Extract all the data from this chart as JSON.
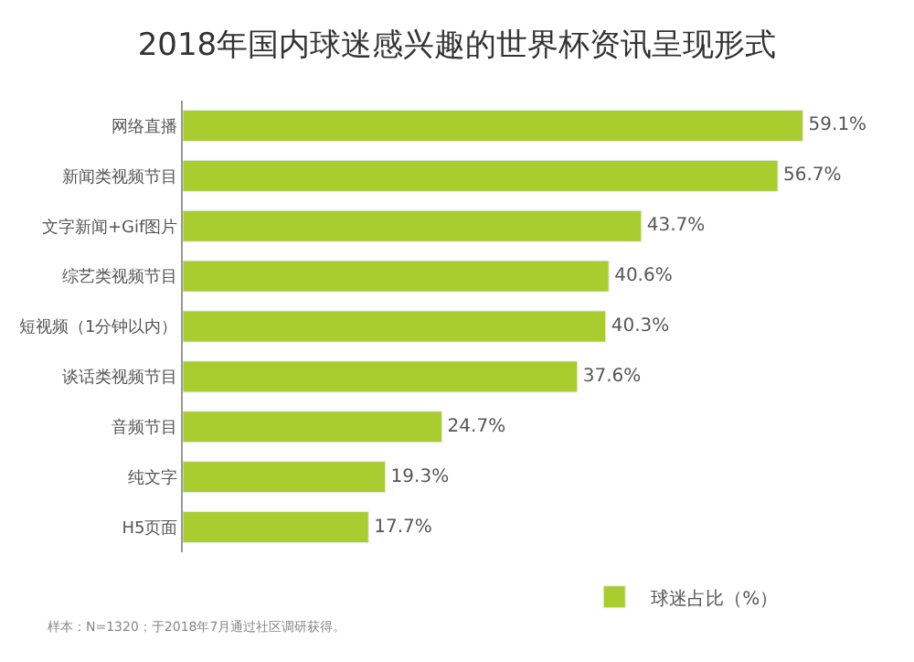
{
  "chart_data": {
    "type": "bar",
    "orientation": "horizontal",
    "title": "2018年国内球迷感兴趣的世界杯资讯呈现形式",
    "categories": [
      "网络直播",
      "新闻类视频节目",
      "文字新闻+Gif图片",
      "综艺类视频节目",
      "短视频（1分钟以内）",
      "谈话类视频节目",
      "音频节目",
      "纯文字",
      "H5页面"
    ],
    "series": [
      {
        "name": "球迷占比（%）",
        "color": "#a9cc2e",
        "values": [
          59.1,
          56.7,
          43.7,
          40.6,
          40.3,
          37.6,
          24.7,
          19.3,
          17.7
        ],
        "value_labels": [
          "59.1%",
          "56.7%",
          "43.7%",
          "40.6%",
          "40.3%",
          "37.6%",
          "24.7%",
          "19.3%",
          "17.7%"
        ]
      }
    ],
    "legend": "bottom",
    "annotations": [
      "样本：N=1320；于2018年7月通过社区调研获得。"
    ]
  }
}
